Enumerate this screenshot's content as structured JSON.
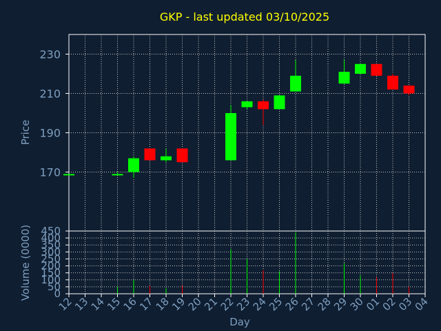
{
  "colors": {
    "background": "#0f1e31",
    "axis_text": "#7f9fbf",
    "title": "#ffff00",
    "frame": "#ffffff",
    "grid": "#c8c8c8",
    "up": "#00ff00",
    "down": "#ff0000"
  },
  "chart_data": [
    {
      "type": "candlestick",
      "title": "GKP - last updated 03/10/2025",
      "ylabel": "Price",
      "ylim": [
        140,
        240
      ],
      "yticks": [
        170,
        190,
        210,
        230
      ],
      "grid": true,
      "x": [
        "12",
        "13",
        "14",
        "15",
        "16",
        "17",
        "18",
        "19",
        "20",
        "21",
        "22",
        "23",
        "24",
        "25",
        "26",
        "27",
        "28",
        "29",
        "30",
        "01",
        "02",
        "03",
        "04"
      ],
      "candles": [
        {
          "day": "12",
          "open": 169,
          "close": 169,
          "high": 169,
          "low": 169
        },
        {
          "day": "15",
          "open": 169,
          "close": 169,
          "high": 170,
          "low": 169
        },
        {
          "day": "16",
          "open": 170,
          "close": 177,
          "high": 178,
          "low": 167
        },
        {
          "day": "17",
          "open": 182,
          "close": 176,
          "high": 182,
          "low": 176
        },
        {
          "day": "18",
          "open": 176,
          "close": 178,
          "high": 182,
          "low": 175
        },
        {
          "day": "19",
          "open": 182,
          "close": 175,
          "high": 182,
          "low": 175
        },
        {
          "day": "22",
          "open": 176,
          "close": 200,
          "high": 204,
          "low": 176
        },
        {
          "day": "23",
          "open": 203,
          "close": 206,
          "high": 206,
          "low": 202
        },
        {
          "day": "24",
          "open": 206,
          "close": 202,
          "high": 207,
          "low": 194
        },
        {
          "day": "25",
          "open": 202,
          "close": 209,
          "high": 209,
          "low": 202
        },
        {
          "day": "26",
          "open": 211,
          "close": 219,
          "high": 227,
          "low": 211
        },
        {
          "day": "29",
          "open": 215,
          "close": 221,
          "high": 227,
          "low": 215
        },
        {
          "day": "30",
          "open": 220,
          "close": 225,
          "high": 225,
          "low": 220
        },
        {
          "day": "01",
          "open": 225,
          "close": 219,
          "high": 225,
          "low": 219
        },
        {
          "day": "02",
          "open": 219,
          "close": 212,
          "high": 220,
          "low": 212
        },
        {
          "day": "03",
          "open": 214,
          "close": 210,
          "high": 214,
          "low": 209
        }
      ]
    },
    {
      "type": "bar",
      "ylabel": "Volume (0000)",
      "xlabel": "Day",
      "ylim": [
        0,
        450
      ],
      "yticks": [
        0,
        50,
        100,
        150,
        200,
        250,
        300,
        350,
        400,
        450
      ],
      "grid": true,
      "x": [
        "12",
        "13",
        "14",
        "15",
        "16",
        "17",
        "18",
        "19",
        "20",
        "21",
        "22",
        "23",
        "24",
        "25",
        "26",
        "27",
        "28",
        "29",
        "30",
        "01",
        "02",
        "03",
        "04"
      ],
      "bars": [
        {
          "day": "15",
          "value": 50,
          "direction": "up"
        },
        {
          "day": "16",
          "value": 100,
          "direction": "up"
        },
        {
          "day": "17",
          "value": 60,
          "direction": "down"
        },
        {
          "day": "18",
          "value": 40,
          "direction": "up"
        },
        {
          "day": "19",
          "value": 60,
          "direction": "down"
        },
        {
          "day": "22",
          "value": 320,
          "direction": "up"
        },
        {
          "day": "23",
          "value": 250,
          "direction": "up"
        },
        {
          "day": "24",
          "value": 170,
          "direction": "down"
        },
        {
          "day": "25",
          "value": 160,
          "direction": "up"
        },
        {
          "day": "26",
          "value": 440,
          "direction": "up"
        },
        {
          "day": "29",
          "value": 220,
          "direction": "up"
        },
        {
          "day": "30",
          "value": 130,
          "direction": "up"
        },
        {
          "day": "01",
          "value": 120,
          "direction": "down"
        },
        {
          "day": "02",
          "value": 150,
          "direction": "down"
        },
        {
          "day": "03",
          "value": 50,
          "direction": "down"
        }
      ]
    }
  ]
}
